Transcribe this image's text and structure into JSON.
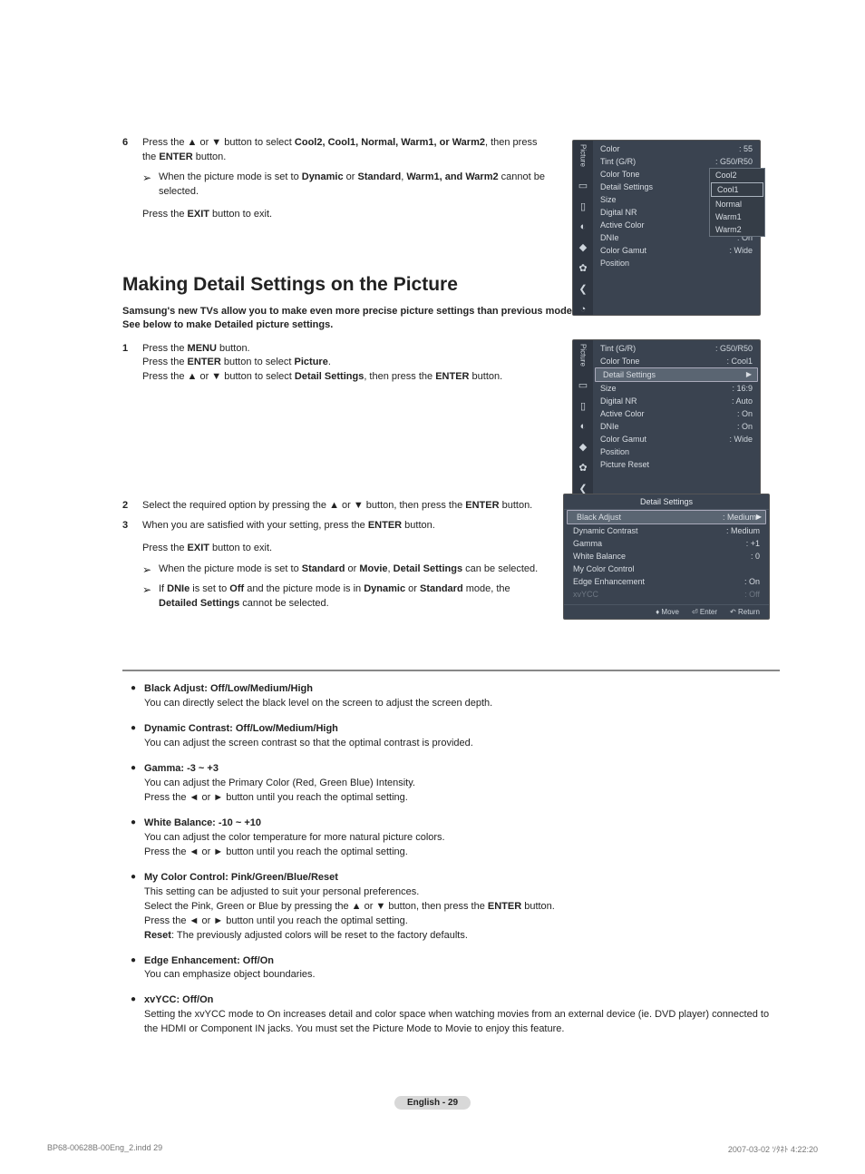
{
  "step6": {
    "num": "6",
    "line1_a": "Press the ▲ or ▼ button to select ",
    "line1_b": ", then press the ",
    "line1_c": " button.",
    "opts": "Cool2, Cool1, Normal, Warm1, or Warm2",
    "enter": "ENTER",
    "note_a": "When the picture mode is set to ",
    "note_b": " or ",
    "note_c": " cannot be selected.",
    "dynamic": "Dynamic",
    "standard": "Standard",
    "warm12": "Warm1, and Warm2",
    "exit_a": "Press the ",
    "exit_b": " button to exit.",
    "exit": "EXIT"
  },
  "section_title": "Making Detail Settings on the Picture",
  "intro_l1": "Samsung's new TVs allow you to make even more precise picture settings than previous models.",
  "intro_l2": "See below to make Detailed picture settings.",
  "step1": {
    "num": "1",
    "l1a": "Press the ",
    "l1b": " button.",
    "menu": "MENU",
    "l2a": "Press the ",
    "l2b": " button to select ",
    "l2c": ".",
    "enter": "ENTER",
    "picture": "Picture",
    "l3a": "Press the ▲ or ▼ button to select ",
    "l3b": ", then press the ",
    "l3c": " button.",
    "ds": "Detail Settings"
  },
  "step2": {
    "num": "2",
    "txt_a": "Select the required option by pressing the ▲ or ▼ button, then press the ",
    "txt_b": " button.",
    "enter": "ENTER"
  },
  "step3": {
    "num": "3",
    "txt_a": "When you are satisfied with your setting, press the ",
    "txt_b": " button.",
    "enter": "ENTER",
    "exit_a": "Press the ",
    "exit_b": " button to exit.",
    "exit": "EXIT",
    "n1a": "When the picture mode is set to ",
    "n1b": " or ",
    "n1c": ", ",
    "n1d": " can be selected.",
    "standard": "Standard",
    "movie": "Movie",
    "ds": "Detail Settings",
    "n2a": "If ",
    "n2b": " is set to ",
    "n2c": " and the picture mode is in ",
    "n2d": " or ",
    "n2e": " mode, the ",
    "n2f": " cannot be selected.",
    "dnie": "DNIe",
    "off": "Off",
    "dynamic": "Dynamic",
    "dset": "Detailed Settings"
  },
  "osd1": {
    "side_label": "Picture",
    "rows": [
      {
        "k": "Color",
        "v": ": 55"
      },
      {
        "k": "Tint (G/R)",
        "v": ": G50/R50"
      },
      {
        "k": "Color Tone",
        "v": ":"
      },
      {
        "k": "Detail Settings",
        "v": ""
      },
      {
        "k": "Size",
        "v": ":"
      },
      {
        "k": "Digital NR",
        "v": ":"
      },
      {
        "k": "Active Color",
        "v": ":"
      },
      {
        "k": "DNIe",
        "v": ": On"
      },
      {
        "k": "Color Gamut",
        "v": ": Wide"
      },
      {
        "k": "Position",
        "v": ""
      }
    ],
    "dropdown": [
      "Cool2",
      "Cool1",
      "Normal",
      "Warm1",
      "Warm2"
    ],
    "dd_sel": 1
  },
  "osd2": {
    "side_label": "Picture",
    "rows": [
      {
        "k": "Tint (G/R)",
        "v": ": G50/R50"
      },
      {
        "k": "Color Tone",
        "v": ": Cool1"
      },
      {
        "k": "Detail Settings",
        "v": "",
        "sel": true
      },
      {
        "k": "Size",
        "v": ": 16:9"
      },
      {
        "k": "Digital NR",
        "v": ": Auto"
      },
      {
        "k": "Active Color",
        "v": ": On"
      },
      {
        "k": "DNIe",
        "v": ": On"
      },
      {
        "k": "Color Gamut",
        "v": ": Wide"
      },
      {
        "k": "Position",
        "v": ""
      },
      {
        "k": "Picture Reset",
        "v": ""
      }
    ]
  },
  "osd3": {
    "title": "Detail Settings",
    "rows": [
      {
        "k": "Black Adjust",
        "v": ": Medium",
        "sel": true
      },
      {
        "k": "Dynamic Contrast",
        "v": ": Medium"
      },
      {
        "k": "Gamma",
        "v": ": +1"
      },
      {
        "k": "White Balance",
        "v": ": 0"
      },
      {
        "k": "My Color Control",
        "v": ""
      },
      {
        "k": "Edge Enhancement",
        "v": ": On"
      },
      {
        "k": "xvYCC",
        "v": ": Off",
        "dim": true
      }
    ],
    "footer": {
      "move": "Move",
      "enter": "Enter",
      "return": "Return"
    }
  },
  "bullets": [
    {
      "title": "Black Adjust: Off/Low/Medium/High",
      "body": "You can directly select the black level on the screen to adjust the screen depth."
    },
    {
      "title": "Dynamic Contrast: Off/Low/Medium/High",
      "body": "You can adjust the screen contrast so that the optimal contrast is provided."
    },
    {
      "title": "Gamma: -3 ~ +3",
      "body": "You can adjust the Primary Color (Red, Green Blue) Intensity.\nPress the ◄ or ► button until you reach the optimal setting."
    },
    {
      "title": "White Balance: -10 ~ +10",
      "body": "You can adjust the color temperature for more natural picture colors.\nPress the ◄ or ► button until you reach the optimal setting."
    },
    {
      "title": "My Color Control: Pink/Green/Blue/Reset",
      "body": "This setting can be adjusted to suit your personal preferences.\nSelect the Pink, Green or Blue by pressing the ▲ or ▼ button, then press the ENTER button.\nPress the ◄ or ► button until you reach the optimal setting.\nReset: The previously adjusted colors will be reset to the factory defaults."
    },
    {
      "title": "Edge Enhancement: Off/On",
      "body": "You can emphasize object boundaries."
    },
    {
      "title": "xvYCC: Off/On",
      "body": "Setting the xvYCC mode to On increases detail and color space when watching movies from an external device (ie. DVD player) connected to the HDMI or Component IN jacks. You must set the Picture Mode to Movie to enjoy this feature."
    }
  ],
  "page_num": "English - 29",
  "print_left": "BP68-00628B-00Eng_2.indd   29",
  "print_right": "2007-03-02   ｿﾀﾈﾄ 4:22:20"
}
